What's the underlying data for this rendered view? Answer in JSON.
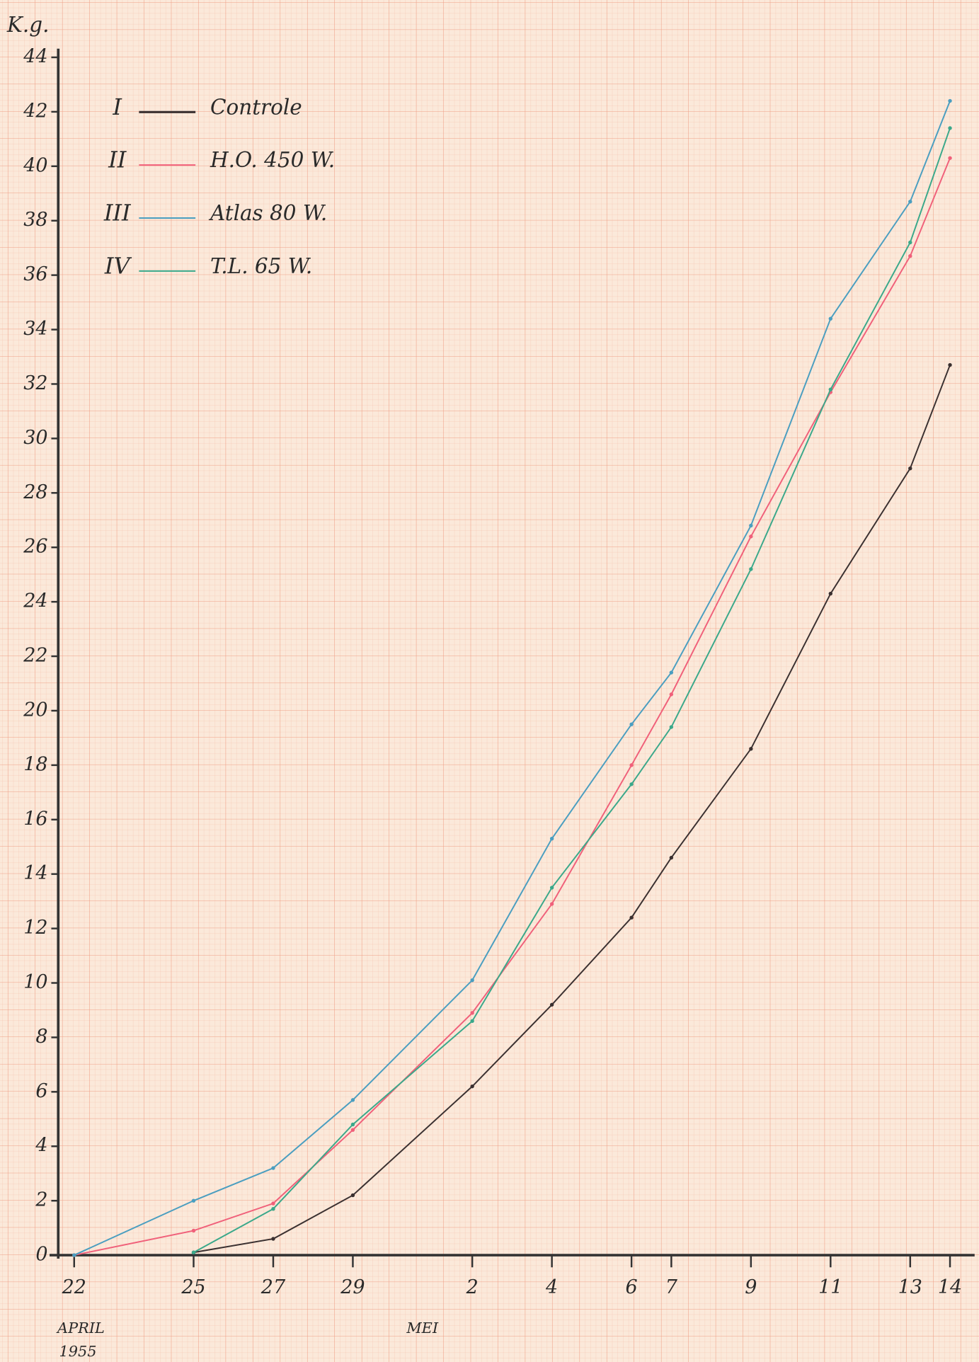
{
  "chart_data": {
    "type": "line",
    "y_label": "K.g.",
    "annotations": [
      "APRIL",
      "1955",
      "MEI"
    ],
    "x": [
      0,
      3,
      5,
      7,
      10,
      12,
      14,
      15,
      17,
      19,
      21,
      22
    ],
    "xlim": [
      -0.4,
      22.4
    ],
    "xticks": [
      {
        "value": 0,
        "label": "22"
      },
      {
        "value": 3,
        "label": "25"
      },
      {
        "value": 5,
        "label": "27"
      },
      {
        "value": 7,
        "label": "29"
      },
      {
        "value": 10,
        "label": "2"
      },
      {
        "value": 12,
        "label": "4"
      },
      {
        "value": 14,
        "label": "6"
      },
      {
        "value": 15,
        "label": "7"
      },
      {
        "value": 17,
        "label": "9"
      },
      {
        "value": 19,
        "label": "11"
      },
      {
        "value": 21,
        "label": "13"
      },
      {
        "value": 22,
        "label": "14"
      }
    ],
    "ylim": [
      0,
      44
    ],
    "yticks": [
      0,
      2,
      4,
      6,
      8,
      10,
      12,
      14,
      16,
      18,
      20,
      22,
      24,
      26,
      28,
      30,
      32,
      34,
      36,
      38,
      40,
      42,
      44
    ],
    "grid": true,
    "legend": "top-left",
    "series": [
      {
        "label": "I",
        "name": "Controle",
        "color": "#3a3030",
        "values": [
          null,
          0.1,
          0.6,
          2.2,
          6.2,
          9.2,
          12.4,
          14.6,
          18.6,
          24.3,
          28.9,
          32.7
        ]
      },
      {
        "label": "II",
        "name": "H.O. 450 W.",
        "color": "#f0607a",
        "values": [
          0,
          0.9,
          1.9,
          4.6,
          8.9,
          12.9,
          18.0,
          20.6,
          26.4,
          31.7,
          36.7,
          40.3
        ]
      },
      {
        "label": "III",
        "name": "Atlas 80 W.",
        "color": "#4a9ec0",
        "values": [
          0,
          2.0,
          3.2,
          5.7,
          10.1,
          15.3,
          19.5,
          21.4,
          26.8,
          34.4,
          38.7,
          42.4
        ]
      },
      {
        "label": "IV",
        "name": "T.L. 65 W.",
        "color": "#3aa88a",
        "values": [
          null,
          0.1,
          1.7,
          4.8,
          8.6,
          13.5,
          17.3,
          19.4,
          25.2,
          31.8,
          37.2,
          41.4
        ]
      }
    ]
  }
}
